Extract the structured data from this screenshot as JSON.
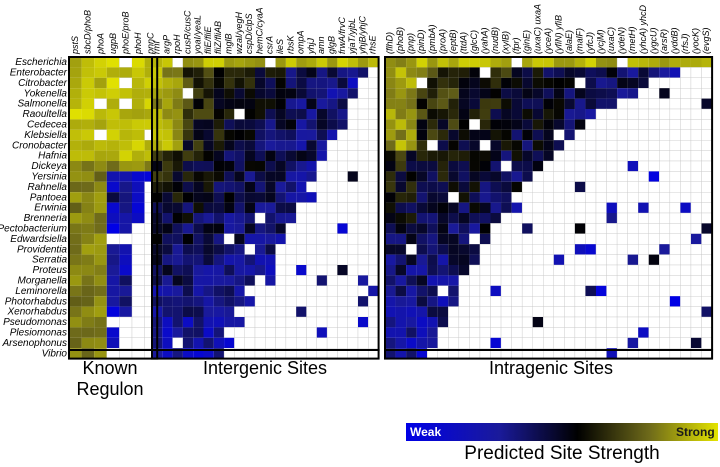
{
  "chart_data": {
    "type": "heatmap",
    "panels": [
      {
        "name": "known_regulon",
        "label": "Known Regulon",
        "columns": [
          "pstS",
          "sbcD/phoB",
          "phoA",
          "ugpB",
          "phoE/proB",
          "phoH",
          "pnnC"
        ]
      },
      {
        "name": "intergenic",
        "label": "Intergenic Sites",
        "columns": [
          "rmf",
          "argP",
          "rpoH",
          "cusR/cusC",
          "yoaI/yeaL",
          "fliE/fliE",
          "fliZ/fliAB",
          "mglB",
          "wzaI/yegH",
          "cspD/clpS",
          "hemC/cyaA",
          "csrA",
          "ileS",
          "rbsK",
          "ompA",
          "yhjJ",
          "amn",
          "glgB",
          "frwA/frvC",
          "yjaT/yjbL",
          "yhjB/yhjC",
          "rhsE"
        ]
      },
      {
        "name": "intragenic",
        "label": "Intragenic Sites",
        "columns": [
          "(flhD)",
          "(phoB)",
          "(pnp)",
          "(pinD)",
          "(pmbA)",
          "(proA)",
          "(eptB)",
          "(ttdA)",
          "(glcC)",
          "(yahA)",
          "(nudB)",
          "(xylB)",
          "(fpr)",
          "(ginE)",
          "(uxaC) uxaA",
          "(yceA)",
          "(yfiN) yfiB",
          "(alaE)",
          "(malF)",
          "(yfcJ)",
          "(ycjM)",
          "(uxaC)",
          "(ydeN)",
          "(metH)",
          "(yhcA) yhcD",
          "(ygcU)",
          "(arsR)",
          "(yddB)",
          "(rfsJ)",
          "(yocK)",
          "(evgS)"
        ]
      }
    ],
    "rows": [
      "Escherichia",
      "Enterobacter",
      "Citrobacter",
      "Yokenella",
      "Salmonella",
      "Raoultella",
      "Cedecea",
      "Klebsiella",
      "Cronobacter",
      "Hafnia",
      "Dickeya",
      "Yersinia",
      "Rahnella",
      "Pantoea",
      "Erwinia",
      "Brenneria",
      "Pectobacterium",
      "Edwardsiella",
      "Providentia",
      "Serratia",
      "Proteus",
      "Morganella",
      "Leminorella",
      "Photorhabdus",
      "Xenorhabdus",
      "Pseudomonas",
      "Plesiomonas",
      "Arsenophonus",
      "Vibrio"
    ],
    "value_scale": {
      "min": 0,
      "max": 1,
      "min_label": "Weak",
      "max_label": "Strong",
      "missing": "no predicted site (white)"
    },
    "colorscale": [
      "#0000e6",
      "#1a1a9a",
      "#000000",
      "#6e6a1a",
      "#e4e400"
    ],
    "legend_title": "Predicted Site Strength",
    "legend_position": "bottom-right",
    "value_encoding": "Cell strengths are approximate readings of the colour map (0 = Weak/blue, 1 = Strong/yellow); blank cells have no predicted site. Values are generated procedurally by the script from the per-row and per-panel profiles below.",
    "row_profiles": {
      "known_regulon": [
        7,
        7,
        7,
        7,
        7,
        7,
        7,
        7,
        7,
        7,
        7,
        7,
        6,
        6,
        6,
        6,
        6,
        5,
        5,
        5,
        5,
        5,
        5,
        5,
        5,
        4,
        4,
        4,
        3
      ],
      "intergenic": [
        22,
        21,
        20,
        20,
        19,
        19,
        19,
        18,
        17,
        17,
        16,
        16,
        15,
        15,
        14,
        14,
        13,
        13,
        12,
        12,
        11,
        11,
        10,
        10,
        9,
        9,
        8,
        8,
        7
      ],
      "intragenic": [
        31,
        28,
        26,
        24,
        22,
        20,
        19,
        18,
        17,
        16,
        15,
        14,
        13,
        12,
        12,
        11,
        10,
        10,
        9,
        9,
        8,
        8,
        7,
        7,
        6,
        6,
        5,
        5,
        4
      ]
    }
  }
}
